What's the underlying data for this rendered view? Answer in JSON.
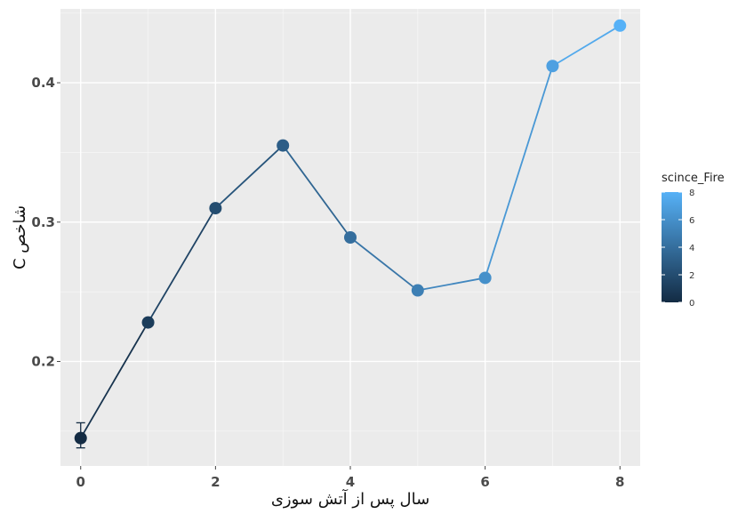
{
  "chart_data": {
    "type": "line",
    "xlabel": "سال پس از آتش سوزی",
    "ylabel": "شاخص C",
    "xlim": [
      -0.3,
      8.3
    ],
    "ylim": [
      0.125,
      0.453
    ],
    "x_ticks": [
      0,
      2,
      4,
      6,
      8
    ],
    "x_tick_labels": [
      "0",
      "2",
      "4",
      "6",
      "8"
    ],
    "y_ticks": [
      0.2,
      0.3,
      0.4
    ],
    "y_tick_labels": [
      "0.2",
      "0.3",
      "0.4"
    ],
    "grid": true,
    "x": [
      0,
      1,
      2,
      3,
      4,
      5,
      6,
      7,
      8
    ],
    "y": [
      0.145,
      0.228,
      0.31,
      0.355,
      0.289,
      0.251,
      0.26,
      0.412,
      0.441
    ],
    "error_bar": {
      "x": 0,
      "low": 0.138,
      "high": 0.156
    },
    "color_scale": {
      "name": "scince_Fire",
      "min": 0,
      "max": 8,
      "low_color": "#132b43",
      "high_color": "#56b1f7",
      "ticks": [
        "0",
        "2",
        "4",
        "6",
        "8"
      ]
    },
    "legend_position": "right"
  }
}
